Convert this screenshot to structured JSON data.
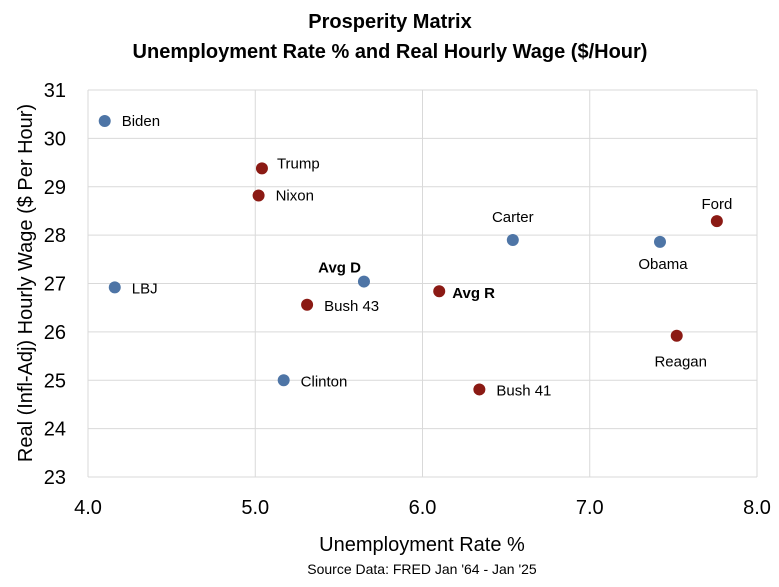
{
  "chart_data": {
    "type": "scatter",
    "title": "Prosperity Matrix",
    "subtitle": "Unemployment Rate % and Real Hourly Wage ($/Hour)",
    "xlabel": "Unemployment Rate %",
    "ylabel": "Real (Infl-Adj) Hourly Wage ($ Per Hour)",
    "source": "Source Data: FRED Jan '64 - Jan '25",
    "xlim": [
      4.0,
      8.0
    ],
    "ylim": [
      23,
      31
    ],
    "x_ticks": [
      "4.0",
      "5.0",
      "6.0",
      "7.0",
      "8.0"
    ],
    "y_ticks": [
      "23",
      "24",
      "25",
      "26",
      "27",
      "28",
      "29",
      "30",
      "31"
    ],
    "grid": true,
    "colors": {
      "D": "#4e75a6",
      "R": "#8b1a14"
    },
    "points": [
      {
        "label": "Biden",
        "party": "D",
        "x": 4.1,
        "y": 30.36,
        "bold": false
      },
      {
        "label": "Trump",
        "party": "R",
        "x": 5.04,
        "y": 29.38,
        "bold": false
      },
      {
        "label": "Nixon",
        "party": "R",
        "x": 5.02,
        "y": 28.82,
        "bold": false
      },
      {
        "label": "Carter",
        "party": "D",
        "x": 6.54,
        "y": 27.9,
        "bold": false
      },
      {
        "label": "Ford",
        "party": "R",
        "x": 7.76,
        "y": 28.29,
        "bold": false
      },
      {
        "label": "Obama",
        "party": "D",
        "x": 7.42,
        "y": 27.86,
        "bold": false
      },
      {
        "label": "LBJ",
        "party": "D",
        "x": 4.16,
        "y": 26.92,
        "bold": false
      },
      {
        "label": "Avg D",
        "party": "D",
        "x": 5.65,
        "y": 27.04,
        "bold": true
      },
      {
        "label": "Bush 43",
        "party": "R",
        "x": 5.31,
        "y": 26.56,
        "bold": false
      },
      {
        "label": "Avg R",
        "party": "R",
        "x": 6.1,
        "y": 26.84,
        "bold": true
      },
      {
        "label": "Reagan",
        "party": "R",
        "x": 7.52,
        "y": 25.92,
        "bold": false
      },
      {
        "label": "Clinton",
        "party": "D",
        "x": 5.17,
        "y": 25.0,
        "bold": false
      },
      {
        "label": "Bush 41",
        "party": "R",
        "x": 6.34,
        "y": 24.81,
        "bold": false
      }
    ]
  }
}
